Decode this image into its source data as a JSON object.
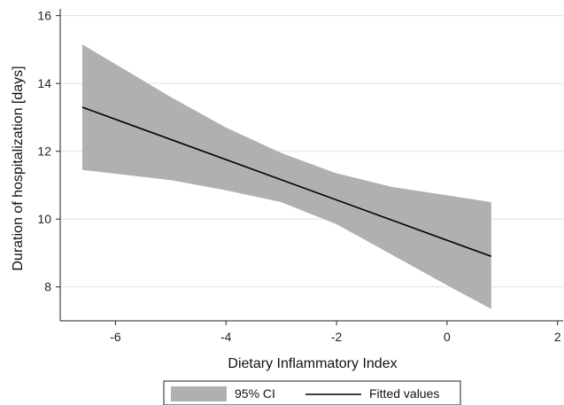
{
  "chart_data": {
    "type": "line",
    "title": "",
    "xlabel": "Dietary Inflammatory Index",
    "ylabel": "Duration of hospitalization [days]",
    "xlim": [
      -7.0,
      2.1
    ],
    "ylim": [
      7.0,
      16.2
    ],
    "xticks": [
      -6,
      -4,
      -2,
      0,
      2
    ],
    "yticks": [
      8,
      10,
      12,
      14,
      16
    ],
    "xtick_labels": [
      "-6",
      "-4",
      "-2",
      "0",
      "2"
    ],
    "ytick_labels": [
      "8",
      "10",
      "12",
      "14",
      "16"
    ],
    "grid": "horizontal",
    "legend_position": "bottom",
    "series": [
      {
        "name": "95% CI",
        "kind": "band",
        "color": "#b0b0b0",
        "x": [
          -6.6,
          -5.0,
          -4.0,
          -3.0,
          -2.0,
          -1.0,
          0.0,
          0.8
        ],
        "upper": [
          15.15,
          13.6,
          12.7,
          11.95,
          11.35,
          10.95,
          10.7,
          10.5
        ],
        "lower": [
          11.45,
          11.15,
          10.85,
          10.5,
          9.85,
          8.95,
          8.05,
          7.35
        ]
      },
      {
        "name": "Fitted values",
        "kind": "line",
        "color": "#000000",
        "x": [
          -6.6,
          0.8
        ],
        "values": [
          13.3,
          8.9
        ]
      }
    ]
  },
  "legend": {
    "items": [
      {
        "label": "95% CI",
        "swatch": "band",
        "color": "#b0b0b0"
      },
      {
        "label": "Fitted values",
        "swatch": "line",
        "color": "#000000"
      }
    ]
  }
}
